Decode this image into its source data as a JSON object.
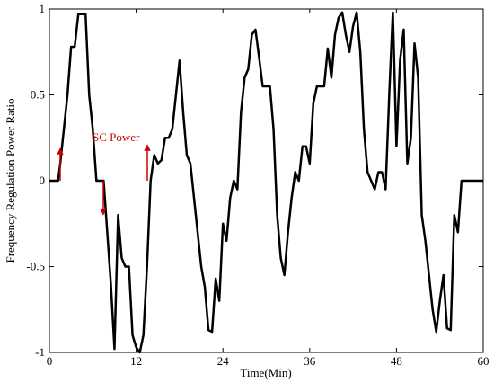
{
  "chart_data": {
    "type": "line",
    "xlabel": "Time(Min)",
    "ylabel": "Frequency Regulation Power Ratio",
    "annotation": "SC Power",
    "xlim": [
      0,
      60
    ],
    "ylim": [
      -1,
      1
    ],
    "xticks": [
      0,
      12,
      24,
      36,
      48,
      60
    ],
    "yticks": [
      -1,
      -0.5,
      0,
      0.5,
      1
    ],
    "series": [
      {
        "color": "#000000",
        "x": [
          0,
          1.2,
          1.5,
          2,
          2.5,
          3,
          3.5,
          4,
          5,
          5.5,
          6,
          6.5,
          7.5,
          8,
          8.5,
          9,
          9.5,
          10,
          10.5,
          11,
          11.5,
          12,
          12.5,
          13,
          13.5,
          14,
          14.5,
          15,
          15.5,
          16,
          16.5,
          17,
          17.5,
          18,
          18.5,
          19,
          19.5,
          20,
          20.5,
          21,
          21.5,
          22,
          22.5,
          23,
          23.5,
          24,
          24.5,
          25,
          25.5,
          26,
          26.5,
          27,
          27.5,
          28,
          28.5,
          29,
          29.5,
          30.5,
          31,
          31.5,
          32,
          32.5,
          33,
          33.5,
          34,
          34.5,
          35,
          35.5,
          36,
          36.5,
          37,
          37.5,
          38,
          38.5,
          39,
          39.5,
          40,
          40.5,
          41,
          41.5,
          42,
          42.5,
          43,
          43.5,
          44,
          44.5,
          45,
          45.5,
          46,
          46.5,
          47,
          47.5,
          48,
          48.5,
          49,
          49.5,
          50,
          50.5,
          51,
          51.5,
          52,
          52.5,
          53,
          53.5,
          54,
          54.5,
          55,
          55.5,
          56,
          56.5,
          57,
          60
        ],
        "values": [
          0,
          0,
          0.1,
          0.3,
          0.5,
          0.78,
          0.78,
          0.97,
          0.97,
          0.5,
          0.3,
          0,
          0,
          -0.3,
          -0.6,
          -0.98,
          -0.2,
          -0.45,
          -0.5,
          -0.5,
          -0.9,
          -0.97,
          -1,
          -0.9,
          -0.5,
          0,
          0.15,
          0.1,
          0.12,
          0.25,
          0.25,
          0.3,
          0.5,
          0.7,
          0.4,
          0.15,
          0.1,
          -0.1,
          -0.3,
          -0.5,
          -0.62,
          -0.87,
          -0.88,
          -0.57,
          -0.7,
          -0.25,
          -0.35,
          -0.1,
          0,
          -0.05,
          0.4,
          0.6,
          0.65,
          0.85,
          0.88,
          0.72,
          0.55,
          0.55,
          0.3,
          -0.2,
          -0.45,
          -0.55,
          -0.3,
          -0.1,
          0.05,
          0,
          0.2,
          0.2,
          0.1,
          0.45,
          0.55,
          0.55,
          0.55,
          0.77,
          0.6,
          0.85,
          0.95,
          0.98,
          0.85,
          0.75,
          0.9,
          0.98,
          0.75,
          0.3,
          0.05,
          0,
          -0.05,
          0.05,
          0.05,
          -0.05,
          0.5,
          0.98,
          0.2,
          0.7,
          0.88,
          0.1,
          0.25,
          0.8,
          0.6,
          -0.2,
          -0.35,
          -0.55,
          -0.75,
          -0.88,
          -0.7,
          -0.55,
          -0.86,
          -0.87,
          -0.2,
          -0.3,
          0,
          0
        ]
      }
    ]
  }
}
